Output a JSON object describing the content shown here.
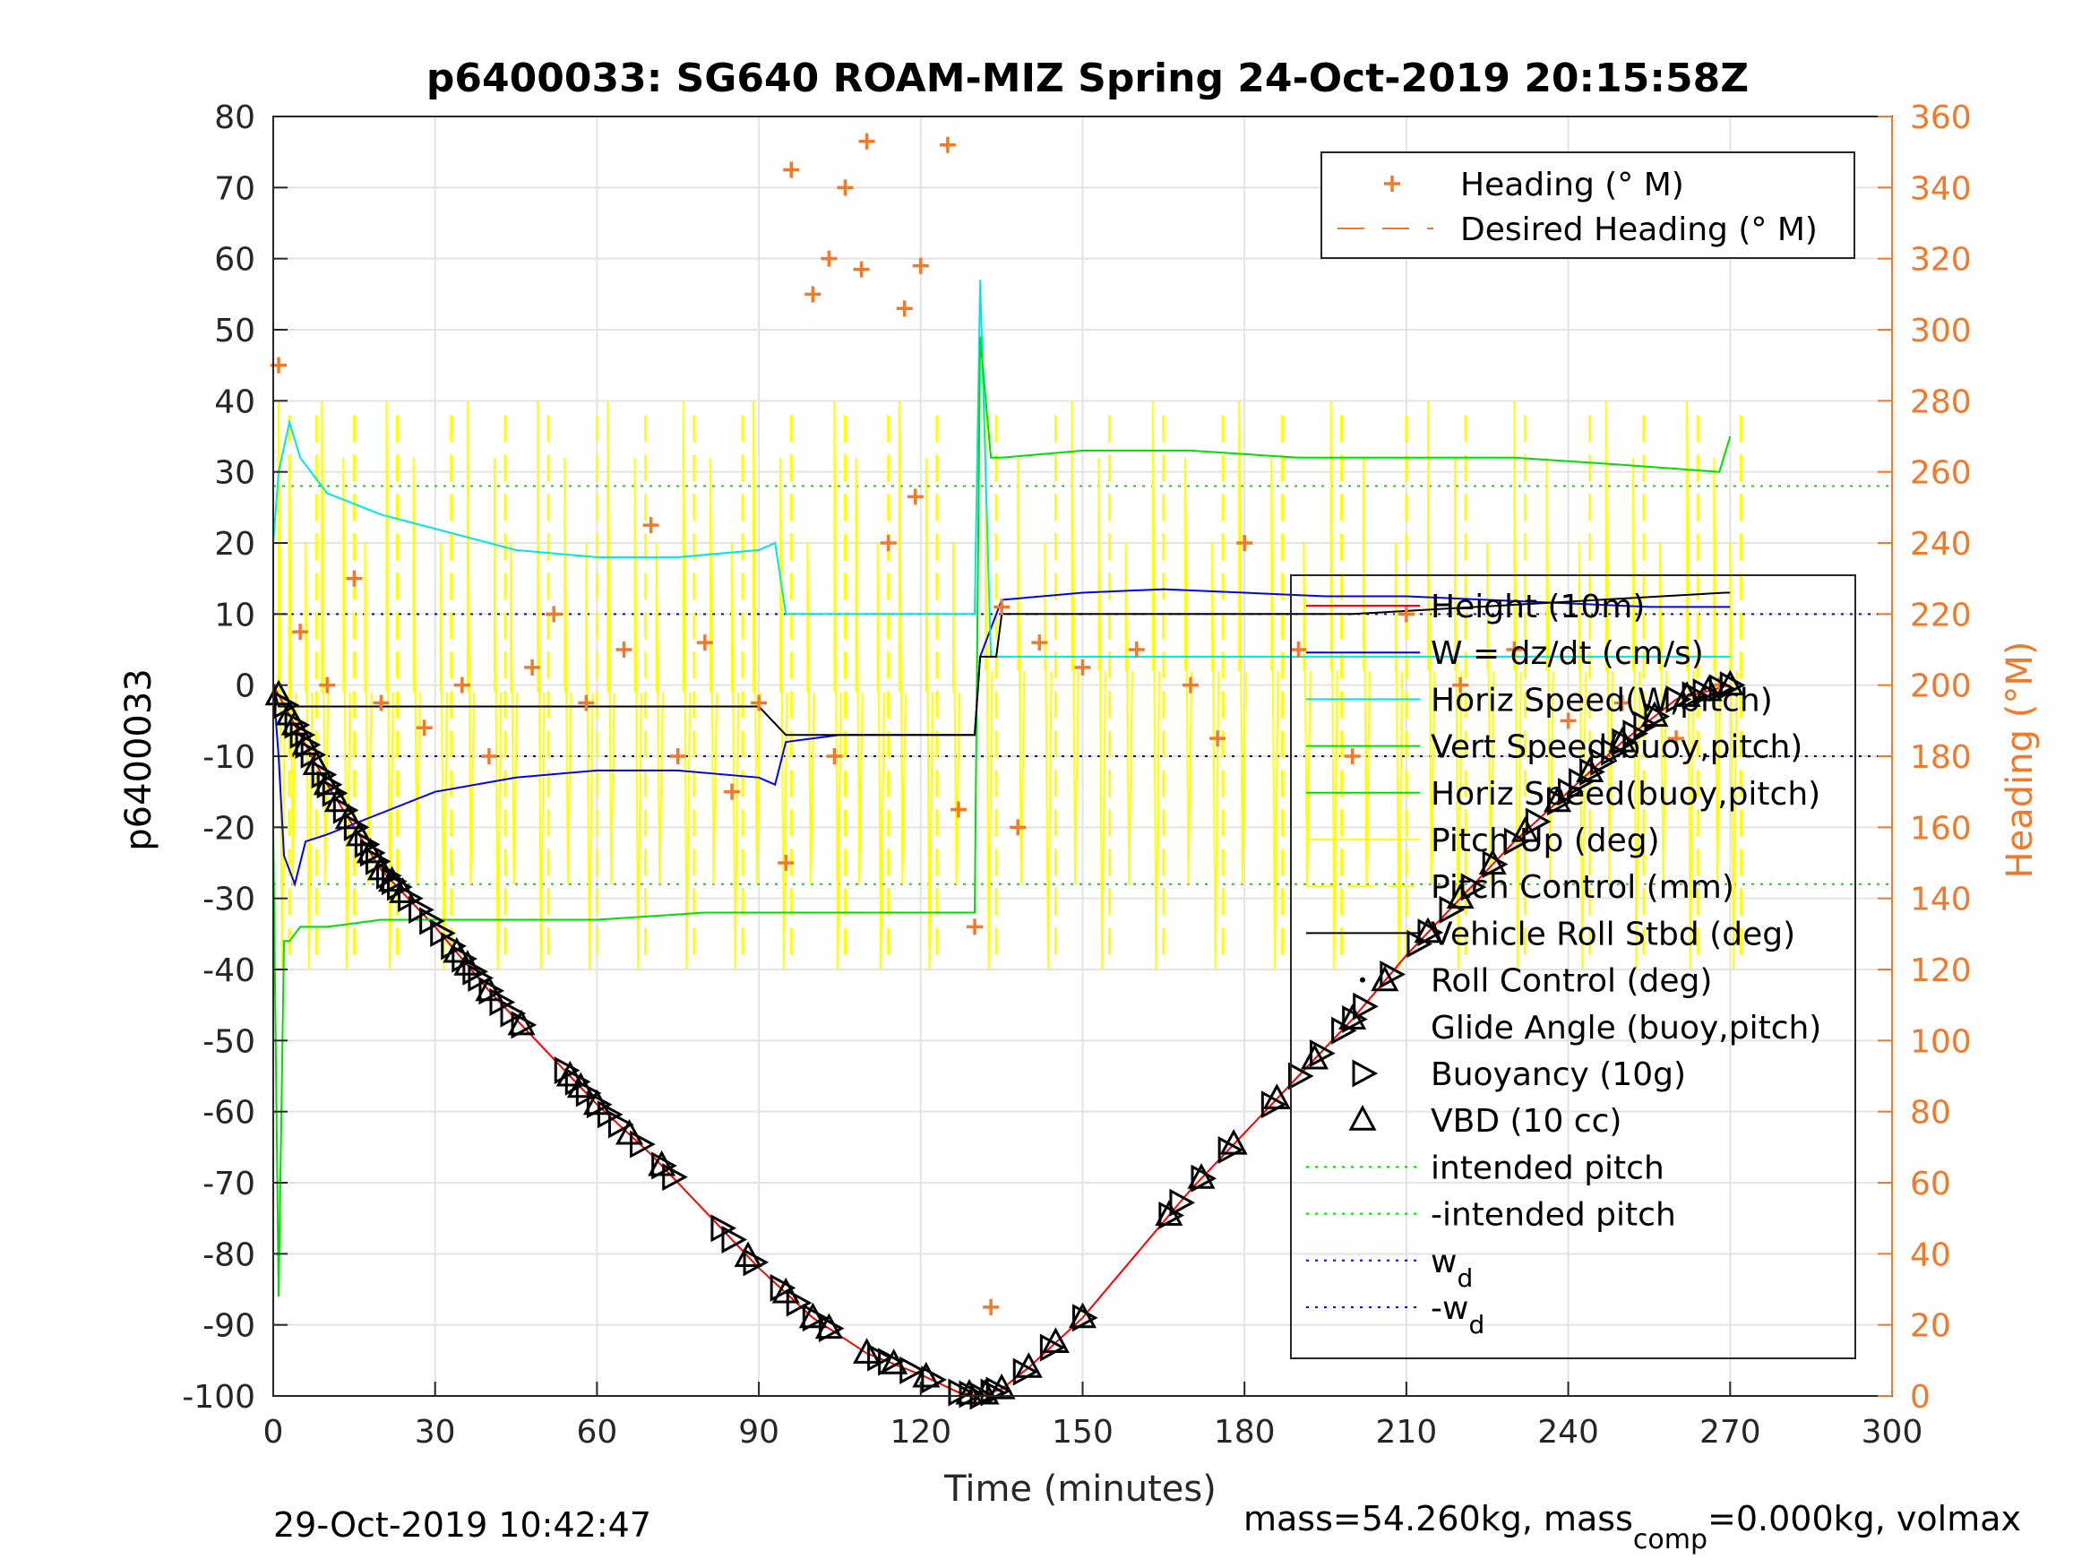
{
  "chart_data": {
    "type": "line",
    "title": "p6400033: SG640 ROAM-MIZ Spring 24-Oct-2019 20:15:58Z",
    "xlabel": "Time (minutes)",
    "ylabel_left": "p6400033",
    "ylabel_right": "Heading (°M)",
    "xlim": [
      0,
      300
    ],
    "ylim_left": [
      -100,
      80
    ],
    "ylim_right": [
      0,
      360
    ],
    "x_ticks": [
      "0",
      "30",
      "60",
      "90",
      "120",
      "150",
      "180",
      "210",
      "240",
      "270",
      "300"
    ],
    "y_ticks_left": [
      "80",
      "70",
      "60",
      "50",
      "40",
      "30",
      "20",
      "10",
      "0",
      "-10",
      "-20",
      "-30",
      "-40",
      "-50",
      "-60",
      "-70",
      "-80",
      "-90",
      "-100"
    ],
    "y_ticks_right": [
      "360",
      "340",
      "320",
      "300",
      "280",
      "260",
      "240",
      "220",
      "200",
      "180",
      "160",
      "140",
      "120",
      "100",
      "80",
      "60",
      "40",
      "20",
      "0"
    ],
    "grid": true,
    "colors": {
      "heading": "#f07a2c",
      "depth": "#ff0000",
      "w": "#0000ff",
      "horiz_speed_w": "#00e5e5",
      "vert_speed": "#00dd00",
      "pitch": "#ffff00",
      "roll": "#000000",
      "intended_pitch": "#00dd00",
      "w_d": "#0000ff"
    },
    "legend_top": [
      {
        "label": "Heading (° M)",
        "style": "plus",
        "color": "#f07a2c"
      },
      {
        "label": "Desired Heading (° M)",
        "style": "dash",
        "color": "#f07a2c"
      }
    ],
    "legend_main": [
      {
        "label": "Height (10m)",
        "style": "line",
        "color": "#ff0000"
      },
      {
        "label": "W = dz/dt (cm/s)",
        "style": "line",
        "color": "#0000ff"
      },
      {
        "label": "Horiz Speed(W,pitch)",
        "style": "line",
        "color": "#00e5e5"
      },
      {
        "label": "Vert Speed(buoy,pitch)",
        "style": "line",
        "color": "#00dd00"
      },
      {
        "label": "Horiz Speed(buoy,pitch)",
        "style": "line",
        "color": "#00dd00"
      },
      {
        "label": "Pitch Up (deg)",
        "style": "line",
        "color": "#ffff00"
      },
      {
        "label": "Pitch Control (mm)",
        "style": "dash",
        "color": "#ffff00"
      },
      {
        "label": "Vehicle Roll Stbd (deg)",
        "style": "line",
        "color": "#000000"
      },
      {
        "label": "Roll Control (deg)",
        "style": "dot",
        "color": "#000000"
      },
      {
        "label": "Glide Angle (buoy,pitch)",
        "style": "none",
        "color": "#000000"
      },
      {
        "label": "Buoyancy (10g)",
        "style": "tri-right",
        "color": "#000000"
      },
      {
        "label": "VBD (10 cc)",
        "style": "tri-up",
        "color": "#000000"
      },
      {
        "label": "intended pitch",
        "style": "dotted",
        "color": "#00dd00"
      },
      {
        "label": "-intended pitch",
        "style": "dotted",
        "color": "#00dd00"
      },
      {
        "label": "w_d",
        "style": "dotted",
        "color": "#0000ff"
      },
      {
        "label": "-w_d",
        "style": "dotted",
        "color": "#0000ff"
      }
    ],
    "reference_lines": {
      "intended_pitch": 28,
      "neg_intended_pitch": -28,
      "w_d": 10,
      "neg_w_d": -10
    },
    "series": [
      {
        "name": "Height (10m)",
        "axis": "left",
        "x": [
          0,
          10,
          20,
          30,
          40,
          50,
          60,
          70,
          80,
          90,
          100,
          110,
          120,
          127,
          131,
          135,
          140,
          150,
          160,
          170,
          180,
          190,
          200,
          210,
          220,
          230,
          240,
          250,
          260,
          270
        ],
        "y": [
          0,
          -14,
          -26,
          -34,
          -43,
          -51,
          -59,
          -66,
          -74,
          -82,
          -89,
          -94,
          -97,
          -99.5,
          -100,
          -99,
          -96,
          -89,
          -80,
          -71,
          -63,
          -55,
          -47,
          -38,
          -30,
          -22,
          -15,
          -8,
          -2,
          0
        ]
      },
      {
        "name": "W = dz/dt (cm/s)",
        "axis": "left",
        "x": [
          0,
          1,
          2,
          4,
          6,
          10,
          20,
          30,
          45,
          60,
          75,
          90,
          93,
          95,
          105,
          115,
          125,
          130,
          131,
          135,
          150,
          165,
          180,
          195,
          210,
          225,
          240,
          255,
          270
        ],
        "y": [
          0,
          -10,
          -24,
          -28,
          -22,
          -21,
          -18,
          -15,
          -13,
          -12,
          -12,
          -13,
          -14,
          -8,
          -7,
          -7,
          -7,
          -7,
          4,
          12,
          13,
          13.5,
          13,
          12.5,
          12.5,
          12,
          11.5,
          11,
          11
        ]
      },
      {
        "name": "Horiz Speed(W,pitch)",
        "axis": "left",
        "x": [
          0,
          1,
          3,
          5,
          10,
          20,
          30,
          45,
          60,
          75,
          90,
          93,
          95,
          105,
          115,
          125,
          129,
          130,
          131,
          133,
          150,
          200,
          270
        ],
        "y": [
          20,
          30,
          37,
          32,
          27,
          24,
          22,
          19,
          18,
          18,
          19,
          20,
          10,
          10,
          10,
          10,
          10,
          10,
          57,
          4,
          4,
          4,
          4
        ]
      },
      {
        "name": "Vert Speed(buoy,pitch)",
        "axis": "left",
        "x": [
          0,
          1,
          2,
          3,
          5,
          10,
          20,
          40,
          60,
          80,
          100,
          120,
          129,
          130,
          131,
          133,
          135,
          150,
          170,
          190,
          210,
          230,
          250,
          268,
          270
        ],
        "y": [
          -20,
          -86,
          -36,
          -36,
          -34,
          -34,
          -33,
          -33,
          -33,
          -32,
          -32,
          -32,
          -32,
          -32,
          49,
          32,
          32,
          33,
          33,
          32,
          32,
          32,
          31,
          30,
          35
        ]
      },
      {
        "name": "Vehicle Roll Stbd (deg)",
        "axis": "left",
        "x": [
          0,
          1,
          2,
          5,
          30,
          60,
          90,
          95,
          129,
          130,
          131,
          134,
          135,
          200,
          269,
          270
        ],
        "y": [
          0,
          -3,
          -3,
          -3,
          -3,
          -3,
          -3,
          -7,
          -7,
          -7,
          4,
          4,
          10,
          10,
          13,
          13
        ]
      },
      {
        "name": "Heading (° M)",
        "axis": "right",
        "x": [
          1,
          5,
          10,
          15,
          20,
          28,
          35,
          40,
          48,
          52,
          58,
          65,
          70,
          75,
          80,
          85,
          90,
          95,
          96,
          100,
          103,
          104,
          106,
          109,
          110,
          114,
          117,
          119,
          120,
          125,
          127,
          130,
          133,
          135,
          138,
          142,
          150,
          160,
          170,
          175,
          180,
          190,
          200,
          210,
          220,
          230,
          240,
          250,
          260,
          268
        ],
        "y": [
          290,
          215,
          200,
          230,
          195,
          188,
          200,
          180,
          205,
          220,
          195,
          210,
          245,
          180,
          212,
          170,
          195,
          150,
          345,
          310,
          320,
          180,
          340,
          317,
          353,
          240,
          306,
          253,
          318,
          352,
          165,
          132,
          25,
          222,
          160,
          212,
          205,
          210,
          200,
          185,
          240,
          210,
          180,
          220,
          200,
          210,
          190,
          195,
          185,
          200
        ]
      }
    ],
    "pitch_spikes_x": [
      1,
      3,
      6,
      9,
      13,
      17,
      21,
      26,
      31,
      36,
      41,
      44,
      49,
      54,
      58,
      62,
      67,
      71,
      76,
      81,
      85,
      89,
      94,
      99,
      104,
      108,
      112,
      116,
      121,
      126,
      132,
      138,
      143,
      148,
      153,
      158,
      163,
      169,
      174,
      179,
      185,
      191,
      196,
      202,
      208,
      214,
      219,
      225,
      230,
      236,
      242,
      247,
      252,
      257,
      262,
      267,
      270
    ],
    "buoyancy_markers": {
      "t": [
        2,
        4,
        5,
        6,
        7,
        9,
        10,
        11,
        13,
        15,
        17,
        18,
        19,
        21,
        22,
        23,
        25,
        27,
        29,
        31,
        33,
        35,
        37,
        38,
        40,
        42,
        44,
        46,
        54,
        56,
        58,
        60,
        62,
        64,
        68,
        72,
        74,
        83,
        85,
        89,
        94,
        97,
        100,
        103,
        112,
        114,
        118,
        122,
        127,
        129,
        131,
        133,
        134,
        139,
        144,
        150,
        166,
        168,
        172,
        177,
        185,
        190,
        194,
        198,
        200,
        202,
        207,
        212,
        214,
        218,
        222,
        226,
        230,
        234,
        238,
        240,
        242,
        244,
        246,
        248,
        250,
        252,
        254,
        256,
        260,
        263,
        265,
        268,
        270
      ]
    },
    "vbd_markers": {
      "t": [
        1,
        3,
        4,
        6,
        8,
        10,
        12,
        14,
        16,
        18,
        20,
        22,
        24,
        34,
        36,
        40,
        46,
        55,
        57,
        60,
        66,
        72,
        88,
        95,
        100,
        103,
        110,
        115,
        121,
        129,
        132,
        135,
        140,
        145,
        150,
        166,
        172,
        178,
        186,
        193,
        200,
        206,
        214,
        220,
        226,
        232,
        238,
        244,
        250,
        256,
        262,
        266,
        270
      ]
    },
    "footer_left": "29-Oct-2019 10:42:47",
    "footer_right_parts": [
      "mass=54.260kg, mass",
      "comp",
      "=0.000kg, volmax"
    ]
  }
}
